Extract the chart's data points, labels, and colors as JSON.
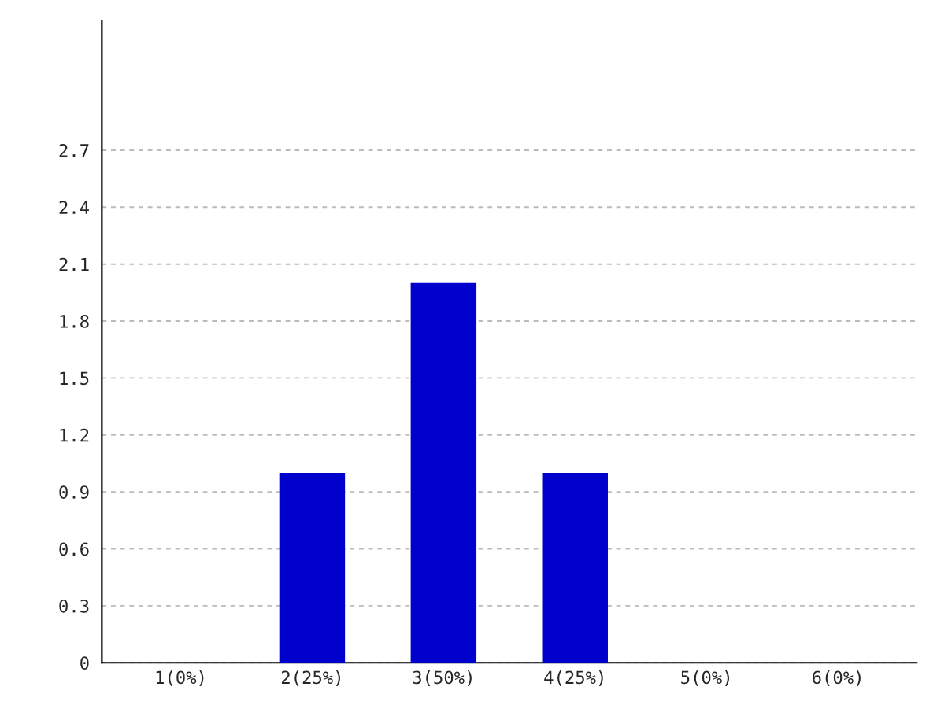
{
  "chart_data": {
    "type": "bar",
    "categories": [
      "1(0%)",
      "2(25%)",
      "3(50%)",
      "4(25%)",
      "5(0%)",
      "6(0%)"
    ],
    "values": [
      0,
      1,
      2,
      1,
      0,
      0
    ],
    "color": "#0000cc",
    "ylim": [
      0,
      3.38
    ],
    "yticks": [
      0,
      0.3,
      0.6,
      0.9,
      1.2,
      1.5,
      1.8,
      2.1,
      2.4,
      2.7
    ],
    "grid": "y"
  }
}
